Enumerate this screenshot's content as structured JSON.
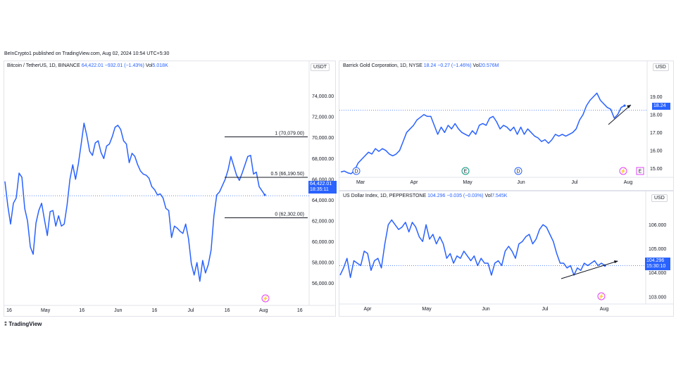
{
  "header": {
    "published": "BeInCrypto1 published on TradingView.com, Aug 02, 2024 10:54 UTC+5:30"
  },
  "footer": {
    "brand": "TradingView"
  },
  "colors": {
    "line": "#2962ff",
    "price_label_bg": "#2962ff",
    "fib_line": "#131722"
  },
  "panels": {
    "btc": {
      "symbol": "Bitcoin / TetherUS, 1D, BINANCE",
      "price": "64,422.01",
      "change": "−932.01 (−1.43%)",
      "vol_label": "Vol",
      "vol": "5.018K",
      "currency": "USDT",
      "last_price_label": "64,422.01",
      "countdown": "18:35:11",
      "fib_labels": [
        "1 (70,079.00)",
        "0.5 (66,190.50)",
        "0 (62,302.00)"
      ]
    },
    "gold": {
      "symbol": "Barrick Gold Corporation, 1D, NYSE",
      "price": "18.24",
      "change": "−0.27 (−1.46%)",
      "vol_label": "Vol",
      "vol": "20.576M",
      "currency": "USD",
      "last_price_label": "18.24",
      "events": [
        "D",
        "E",
        "D",
        "⚡",
        "E"
      ]
    },
    "dxy": {
      "symbol": "US Dollar Index, 1D, PEPPERSTONE",
      "price": "104.296",
      "change": "−0.035 (−0.03%)",
      "vol_label": "Vol",
      "vol": "7.545K",
      "currency": "USD",
      "last_price_label": "104.296",
      "countdown": "15:30:10"
    }
  },
  "chart_data": [
    {
      "type": "line",
      "title": "Bitcoin / TetherUS, 1D, BINANCE",
      "ylim": [
        53000,
        76000
      ],
      "y_ticks": [
        54000,
        56000,
        58000,
        60000,
        62000,
        64000,
        66000,
        68000,
        70000,
        72000,
        74000
      ],
      "y_tick_labels": [
        "54,000.00",
        "56,000.00",
        "58,000.00",
        "60,000.00",
        "62,000.00",
        "64,000.00",
        "66,000.00",
        "68,000.00",
        "70,000.00",
        "72,000.00",
        "74,000.00"
      ],
      "x_tick_labels": [
        "16",
        "May",
        "16",
        "Jun",
        "16",
        "Jul",
        "16",
        "Aug",
        "16"
      ],
      "fib_levels": [
        70079,
        66190.5,
        62302
      ],
      "series": [
        {
          "values": [
            65800,
            63500,
            61700,
            63700,
            64200,
            66600,
            66200,
            63200,
            62000,
            59500,
            58800,
            61800,
            63000,
            63700,
            62100,
            60600,
            62900,
            63000,
            61500,
            62500,
            61500,
            61700,
            63500,
            66000,
            67400,
            66000,
            67500,
            69400,
            71400,
            70200,
            68700,
            68300,
            69500,
            69700,
            68600,
            68000,
            69200,
            69400,
            70100,
            71000,
            71200,
            70800,
            69700,
            69400,
            67600,
            68500,
            68200,
            67400,
            66800,
            66500,
            66400,
            66100,
            65300,
            65000,
            64500,
            64600,
            64200,
            63200,
            63000,
            60400,
            61500,
            61300,
            61000,
            60800,
            61700,
            60300,
            57900,
            56800,
            58000,
            56200,
            58200,
            57000,
            57800,
            59200,
            62500,
            64500,
            64800,
            65400,
            66000,
            66900,
            68200,
            67300,
            66400,
            65900,
            66600,
            67400,
            68200,
            68300,
            66500,
            66700,
            65300,
            64900,
            64500
          ],
          "last": 64422.01
        }
      ]
    },
    {
      "type": "line",
      "title": "Barrick Gold Corporation, 1D, NYSE",
      "ylim": [
        14.5,
        19.8
      ],
      "y_ticks": [
        15,
        16,
        17,
        18,
        19
      ],
      "y_tick_labels": [
        "15.00",
        "16.00",
        "17.00",
        "18.00",
        "19.00"
      ],
      "x_tick_labels": [
        "Mar",
        "Apr",
        "May",
        "Jun",
        "Jul",
        "Aug"
      ],
      "series": [
        {
          "values": [
            14.8,
            14.85,
            14.75,
            14.7,
            14.9,
            15.3,
            15.5,
            15.7,
            15.9,
            15.8,
            16.1,
            15.95,
            16.1,
            16.0,
            15.8,
            15.7,
            15.8,
            16.0,
            16.5,
            17.0,
            17.2,
            17.4,
            17.7,
            17.85,
            18.0,
            17.9,
            17.9,
            17.4,
            16.9,
            17.3,
            17.0,
            17.4,
            17.2,
            17.5,
            17.2,
            17.0,
            16.9,
            16.8,
            17.1,
            16.9,
            17.4,
            17.5,
            17.4,
            17.8,
            17.9,
            17.6,
            17.2,
            17.4,
            17.3,
            17.1,
            17.3,
            16.9,
            17.3,
            16.9,
            17.2,
            17.0,
            16.8,
            16.7,
            16.5,
            16.6,
            16.4,
            16.6,
            16.9,
            16.8,
            16.9,
            16.8,
            16.9,
            17.0,
            17.2,
            17.7,
            18.0,
            18.5,
            18.8,
            19.0,
            19.2,
            18.8,
            18.6,
            18.4,
            18.3,
            17.8,
            18.0,
            18.4,
            18.5
          ],
          "last": 18.24
        }
      ]
    },
    {
      "type": "line",
      "title": "US Dollar Index, 1D, PEPPERSTONE",
      "ylim": [
        102.7,
        106.8
      ],
      "y_ticks": [
        103,
        104,
        105,
        106
      ],
      "y_tick_labels": [
        "103.000",
        "104.000",
        "105.000",
        "106.000"
      ],
      "x_tick_labels": [
        "Apr",
        "May",
        "Jun",
        "Jul",
        "Aug"
      ],
      "series": [
        {
          "values": [
            103.9,
            104.2,
            104.6,
            103.8,
            104.5,
            104.4,
            104.3,
            104.9,
            104.8,
            104.1,
            104.5,
            104.6,
            104.2,
            105.2,
            106.0,
            106.2,
            106.0,
            105.8,
            105.9,
            106.1,
            105.7,
            106.1,
            105.9,
            105.5,
            105.3,
            106.0,
            105.4,
            105.6,
            105.2,
            105.5,
            105.2,
            104.6,
            104.8,
            104.4,
            104.7,
            104.6,
            104.9,
            104.7,
            104.5,
            104.7,
            104.3,
            104.6,
            104.4,
            104.4,
            103.9,
            104.4,
            104.5,
            104.3,
            104.9,
            105.1,
            104.9,
            104.6,
            105.2,
            105.3,
            105.5,
            105.6,
            105.2,
            105.4,
            105.8,
            106.0,
            105.9,
            105.6,
            105.3,
            104.8,
            104.4,
            104.4,
            104.2,
            104.3,
            103.9,
            104.2,
            104.1,
            104.4,
            104.3,
            104.4,
            104.5,
            104.3,
            104.4,
            104.3
          ],
          "last": 104.296
        }
      ]
    }
  ]
}
